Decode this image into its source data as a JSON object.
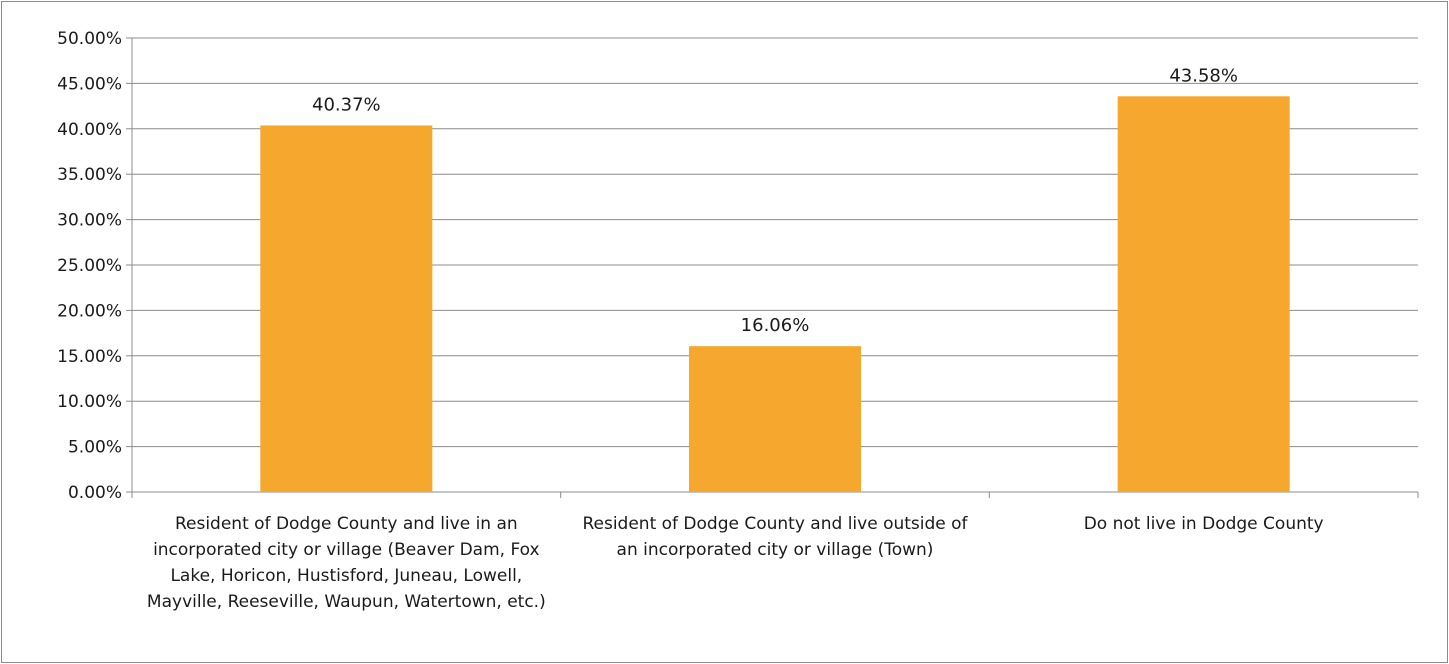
{
  "chart_data": {
    "type": "bar",
    "categories": [
      "Resident of Dodge County and live in an incorporated city or village (Beaver Dam, Fox Lake, Horicon, Hustisford, Juneau, Lowell, Mayville, Reeseville, Waupun, Watertown, etc.)",
      "Resident of Dodge County and live outside of an incorporated city or village (Town)",
      "Do not live in Dodge County"
    ],
    "values": [
      40.37,
      16.06,
      43.58
    ],
    "data_labels": [
      "40.37%",
      "16.06%",
      "43.58%"
    ],
    "ylim": [
      0,
      50
    ],
    "y_ticks": [
      "0.00%",
      "5.00%",
      "10.00%",
      "15.00%",
      "20.00%",
      "25.00%",
      "30.00%",
      "35.00%",
      "40.00%",
      "45.00%",
      "50.00%"
    ],
    "y_tick_values": [
      0,
      5,
      10,
      15,
      20,
      25,
      30,
      35,
      40,
      45,
      50
    ],
    "title": "",
    "xlabel": "",
    "ylabel": "",
    "grid": true,
    "legend": "none",
    "bar_color": "#F5A82D",
    "grid_color": "#8c8c8c"
  }
}
